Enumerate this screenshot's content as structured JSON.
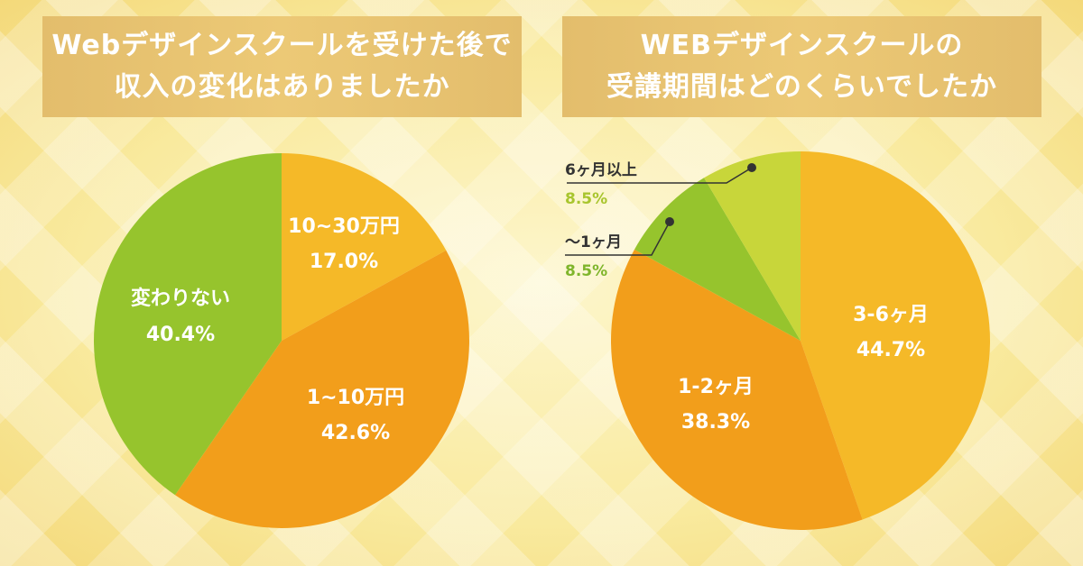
{
  "chart_data": [
    {
      "type": "pie",
      "title_lines": [
        "Webデザインスクールを受けた後で",
        "収入の変化はありましたか"
      ],
      "slices": [
        {
          "name": "10~30万円",
          "percent_label": "17.0%",
          "value": 17.0,
          "color": "#f5b928"
        },
        {
          "name": "1~10万円",
          "percent_label": "42.6%",
          "value": 42.6,
          "color": "#f29e1b"
        },
        {
          "name": "変わりない",
          "percent_label": "40.4%",
          "value": 40.4,
          "color": "#96c42d"
        }
      ]
    },
    {
      "type": "pie",
      "title_lines": [
        "WEBデザインスクールの",
        "受講期間はどのくらいでしたか"
      ],
      "slices": [
        {
          "name": "3-6ヶ月",
          "percent_label": "44.7%",
          "value": 44.7,
          "color": "#f5b928"
        },
        {
          "name": "1-2ヶ月",
          "percent_label": "38.3%",
          "value": 38.3,
          "color": "#f29e1b"
        },
        {
          "name": "〜1ヶ月",
          "percent_label": "8.5%",
          "value": 8.5,
          "color": "#96c42d",
          "label_color": "#7fb52b"
        },
        {
          "name": "6ヶ月以上",
          "percent_label": "8.5%",
          "value": 8.5,
          "color": "#c8d63a",
          "label_color": "#a8c52d"
        }
      ]
    }
  ]
}
